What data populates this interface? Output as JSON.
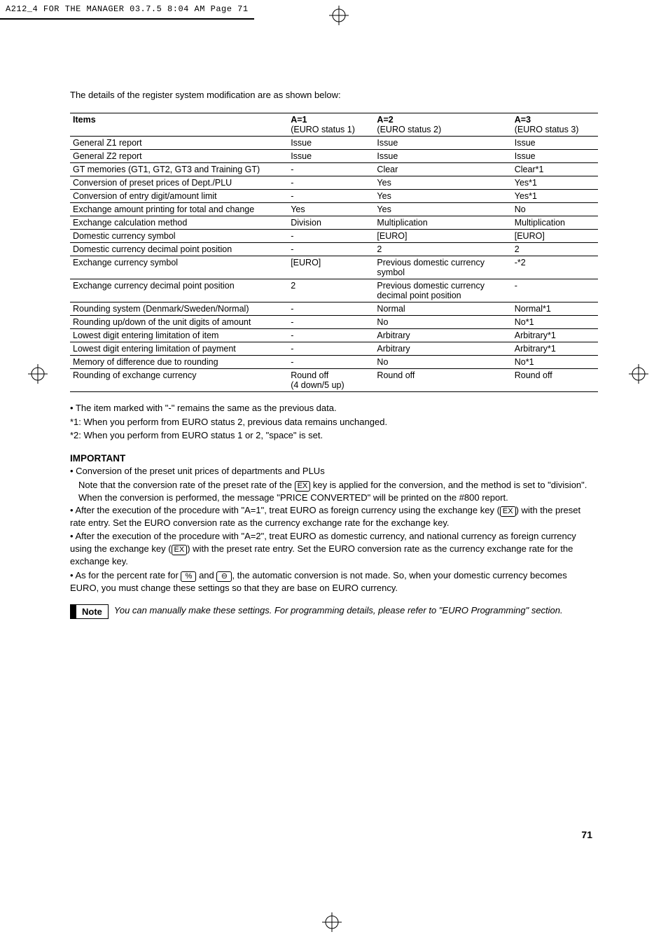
{
  "header_line": "A212_4 FOR THE MANAGER  03.7.5 8:04 AM  Page 71",
  "intro": "The details of the register system modification are as shown below:",
  "table": {
    "head": {
      "items": "Items",
      "a1_top": "A=1",
      "a1_sub": "(EURO status 1)",
      "a2_top": "A=2",
      "a2_sub": "(EURO status 2)",
      "a3_top": "A=3",
      "a3_sub": "(EURO status 3)"
    },
    "rows": [
      {
        "c0": "General Z1 report",
        "c1": "Issue",
        "c2": "Issue",
        "c3": "Issue"
      },
      {
        "c0": "General Z2 report",
        "c1": "Issue",
        "c2": "Issue",
        "c3": "Issue"
      },
      {
        "c0": "GT memories (GT1, GT2, GT3 and Training GT)",
        "c1": "-",
        "c2": "Clear",
        "c3": "Clear*1"
      },
      {
        "c0": "Conversion of preset prices of Dept./PLU",
        "c1": "-",
        "c2": "Yes",
        "c3": "Yes*1"
      },
      {
        "c0": "Conversion of entry digit/amount limit",
        "c1": "-",
        "c2": "Yes",
        "c3": "Yes*1"
      },
      {
        "c0": "Exchange amount printing for total and change",
        "c1": "Yes",
        "c2": "Yes",
        "c3": "No"
      },
      {
        "c0": "Exchange calculation method",
        "c1": "Division",
        "c2": "Multiplication",
        "c3": "Multiplication"
      },
      {
        "c0": "Domestic currency symbol",
        "c1": "-",
        "c2": "[EURO]",
        "c3": "[EURO]"
      },
      {
        "c0": "Domestic currency decimal point position",
        "c1": "-",
        "c2": "2",
        "c3": "2"
      },
      {
        "c0": "Exchange currency symbol",
        "c1": "[EURO]",
        "c2": "Previous domestic currency symbol",
        "c3": "-*2"
      },
      {
        "c0": "Exchange currency decimal point position",
        "c1": "2",
        "c2": "Previous domestic currency decimal point position",
        "c3": "-"
      },
      {
        "c0": "Rounding system (Denmark/Sweden/Normal)",
        "c1": "-",
        "c2": "Normal",
        "c3": "Normal*1"
      },
      {
        "c0": "Rounding up/down of the unit digits of amount",
        "c1": "-",
        "c2": "No",
        "c3": "No*1"
      },
      {
        "c0": "Lowest digit entering limitation of item",
        "c1": "-",
        "c2": "Arbitrary",
        "c3": "Arbitrary*1"
      },
      {
        "c0": "Lowest digit entering limitation of payment",
        "c1": "-",
        "c2": "Arbitrary",
        "c3": "Arbitrary*1"
      },
      {
        "c0": "Memory of difference due to rounding",
        "c1": "-",
        "c2": "No",
        "c3": "No*1"
      },
      {
        "c0": "Rounding of exchange currency",
        "c1": "Round off\n(4 down/5 up)",
        "c2": "Round off",
        "c3": "Round off"
      }
    ]
  },
  "post_table": {
    "l1": "• The item marked with \"-\" remains the same as the previous data.",
    "l2": "*1: When you perform from EURO status 2, previous data remains unchanged.",
    "l3": "*2: When you perform from EURO status 1 or 2, \"space\" is set."
  },
  "important_heading": "IMPORTANT",
  "bul": {
    "b1a": "• Conversion of the preset unit prices of departments and PLUs",
    "b1b_1": "Note that the conversion rate of the preset rate of the ",
    "key_ex": "EX",
    "b1b_2": " key is applied for the conversion, and the method is set to \"division\".  When the conversion is performed, the message \"PRICE CONVERTED\" will be printed on the #800 report.",
    "b2_1": "• After the execution of the procedure with \"A=1\", treat EURO as foreign currency using the exchange key (",
    "b2_2": ") with the preset rate entry.  Set the EURO conversion rate as the currency exchange rate for the exchange key.",
    "b3_1": "• After the execution of the procedure with \"A=2\", treat EURO as domestic currency, and national currency as foreign currency using the exchange key (",
    "b3_2": ") with the preset rate entry.  Set the EURO conversion rate as the currency exchange rate for the exchange key.",
    "b4_1": "• As for the percent rate for ",
    "key_pct": "%",
    "b4_2": " and ",
    "key_minus": "⊖",
    "b4_3": ", the automatic conversion is not made.  So, when your domestic currency becomes EURO, you must change these settings so that they are base on EURO currency."
  },
  "note": {
    "label": "Note",
    "text": "You can manually make these settings.  For programming details, please refer to \"EURO Programming\" section."
  },
  "page_number": "71"
}
